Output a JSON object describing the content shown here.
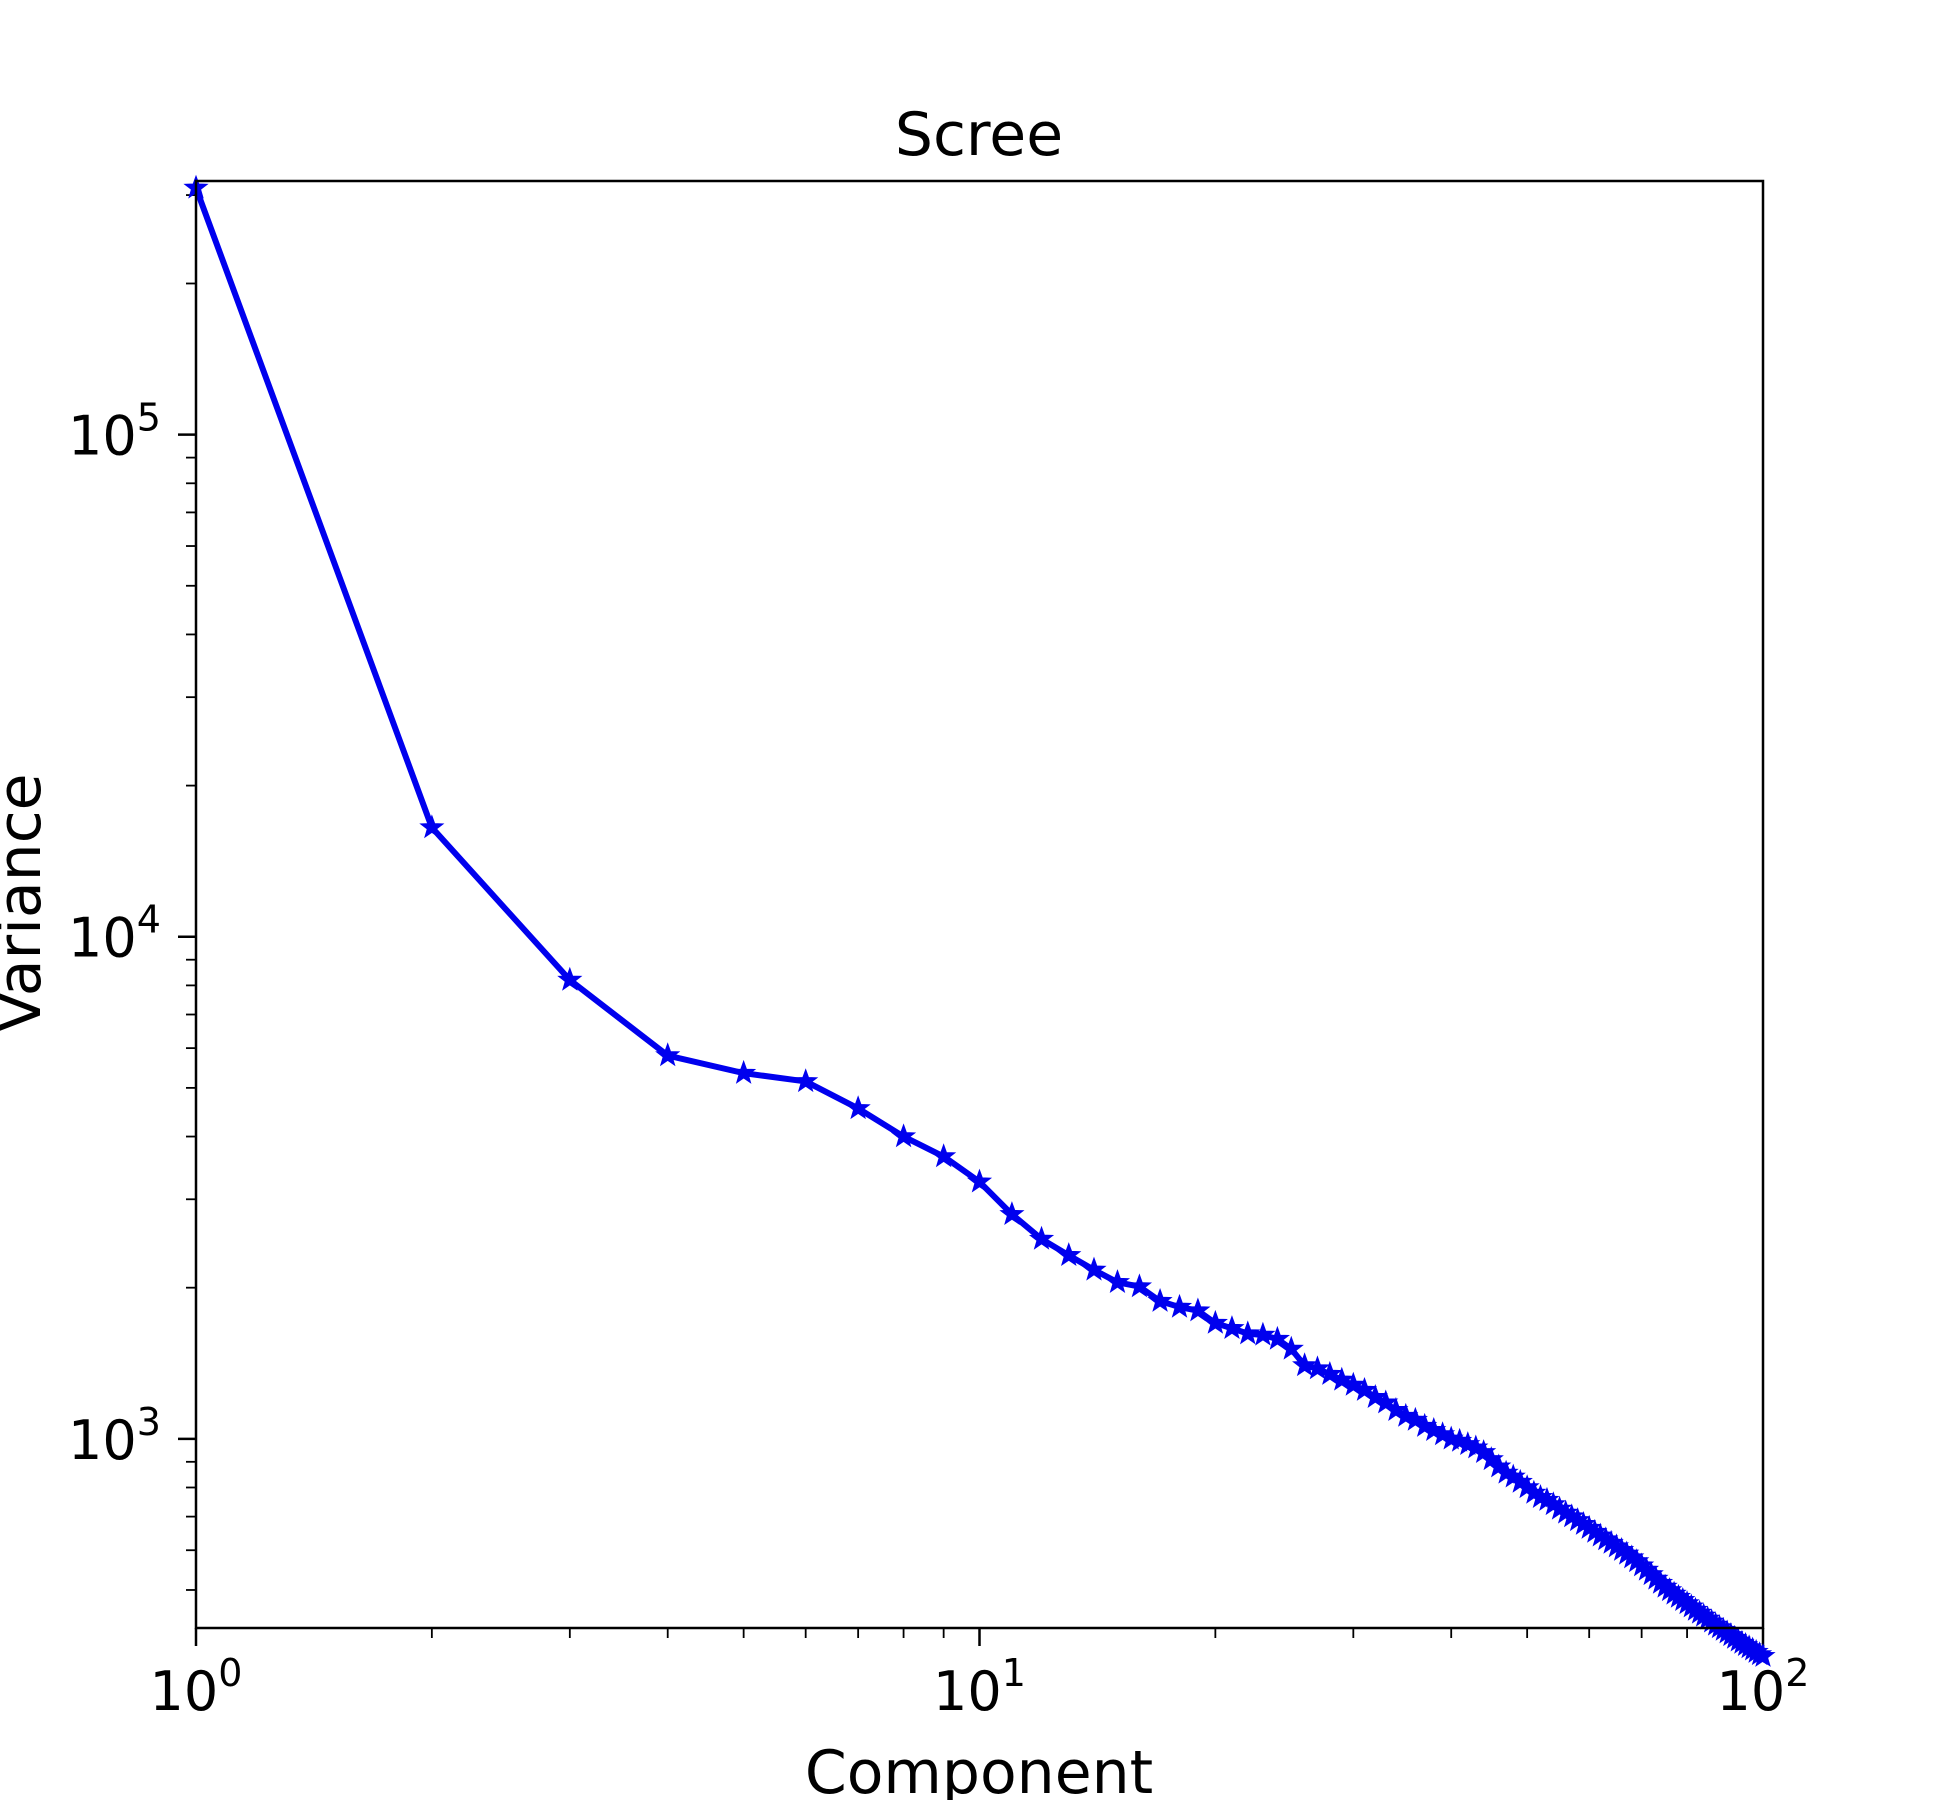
{
  "chart_data": {
    "type": "line",
    "title": "Scree",
    "xlabel": "Component",
    "ylabel": "Variance",
    "x_scale": "log",
    "y_scale": "log",
    "xlim": [
      1,
      100
    ],
    "ylim": [
      420,
      320000
    ],
    "grid": false,
    "line_color": "#0000ee",
    "marker": "star",
    "x_ticks": [
      {
        "base": "10",
        "exp": "0",
        "value": 1
      },
      {
        "base": "10",
        "exp": "1",
        "value": 10
      },
      {
        "base": "10",
        "exp": "2",
        "value": 100
      }
    ],
    "y_ticks": [
      {
        "base": "10",
        "exp": "3",
        "value": 1000
      },
      {
        "base": "10",
        "exp": "4",
        "value": 10000
      },
      {
        "base": "10",
        "exp": "5",
        "value": 100000
      }
    ],
    "series": [
      {
        "x": [
          1,
          2,
          3,
          4,
          5,
          6,
          7,
          8,
          9,
          10,
          11,
          12,
          13,
          14,
          15,
          16,
          17,
          18,
          19,
          20,
          21,
          22,
          23,
          24,
          25,
          26,
          27,
          28,
          29,
          30,
          31,
          32,
          33,
          34,
          35,
          36,
          37,
          38,
          39,
          40,
          41,
          42,
          43,
          44,
          45,
          46,
          47,
          48,
          49,
          50,
          51,
          52,
          53,
          54,
          55,
          56,
          57,
          58,
          59,
          60,
          61,
          62,
          63,
          64,
          65,
          66,
          67,
          68,
          69,
          70,
          71,
          72,
          73,
          74,
          75,
          76,
          77,
          78,
          79,
          80,
          81,
          82,
          83,
          84,
          85,
          86,
          87,
          88,
          89,
          90,
          91,
          92,
          93,
          94,
          95,
          96,
          97,
          98,
          99,
          100
        ],
        "y": [
          310000,
          16500,
          8200,
          5800,
          5350,
          5150,
          4550,
          4000,
          3650,
          3250,
          2800,
          2500,
          2320,
          2170,
          2050,
          2010,
          1880,
          1830,
          1800,
          1700,
          1660,
          1620,
          1610,
          1580,
          1510,
          1400,
          1380,
          1345,
          1310,
          1280,
          1250,
          1210,
          1180,
          1140,
          1110,
          1090,
          1060,
          1040,
          1020,
          1000,
          990,
          975,
          960,
          940,
          910,
          880,
          855,
          840,
          820,
          800,
          780,
          765,
          755,
          740,
          725,
          712,
          700,
          688,
          676,
          664,
          652,
          641,
          630,
          620,
          610,
          600,
          590,
          580,
          570,
          559,
          548,
          537,
          526,
          516,
          507,
          499,
          491,
          484,
          477,
          470,
          463,
          456,
          450,
          444,
          438,
          432,
          426,
          421,
          416,
          411,
          406,
          401,
          396,
          392,
          388,
          384,
          380,
          376,
          372,
          369
        ]
      }
    ]
  }
}
